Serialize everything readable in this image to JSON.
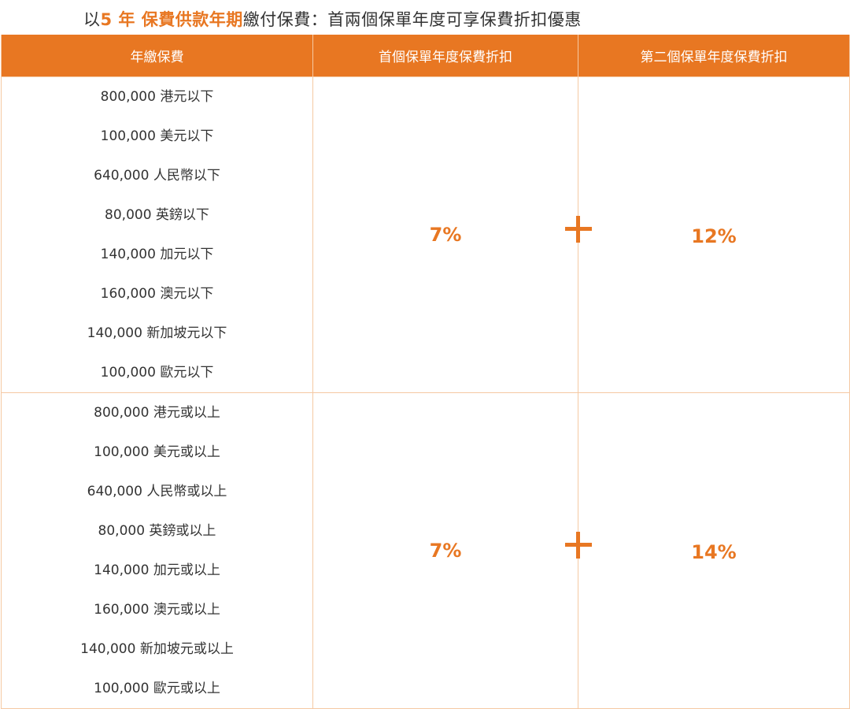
{
  "title": {
    "prefix": "以",
    "highlight": "5 年 保費供款年期",
    "suffix": "繳付保費：首兩個保單年度可享保費折扣優惠"
  },
  "colors": {
    "accent": "#e87722",
    "border": "#f5c9a3",
    "text": "#333333"
  },
  "table": {
    "headers": [
      "年繳保費",
      "首個保單年度保費折扣",
      "第二個保單年度保費折扣"
    ],
    "tiers": [
      {
        "amounts": [
          "800,000 港元以下",
          "100,000 美元以下",
          "640,000 人民幣以下",
          "80,000 英鎊以下",
          "140,000 加元以下",
          "160,000 澳元以下",
          "140,000 新加坡元以下",
          "100,000 歐元以下"
        ],
        "first_year_discount": "7%",
        "second_year_discount": "12%",
        "plus_icon": "plus-icon"
      },
      {
        "amounts": [
          "800,000 港元或以上",
          "100,000 美元或以上",
          "640,000 人民幣或以上",
          "80,000 英鎊或以上",
          "140,000 加元或以上",
          "160,000 澳元或以上",
          "140,000 新加坡元或以上",
          "100,000 歐元或以上"
        ],
        "first_year_discount": "7%",
        "second_year_discount": "14%",
        "plus_icon": "plus-icon"
      }
    ]
  }
}
